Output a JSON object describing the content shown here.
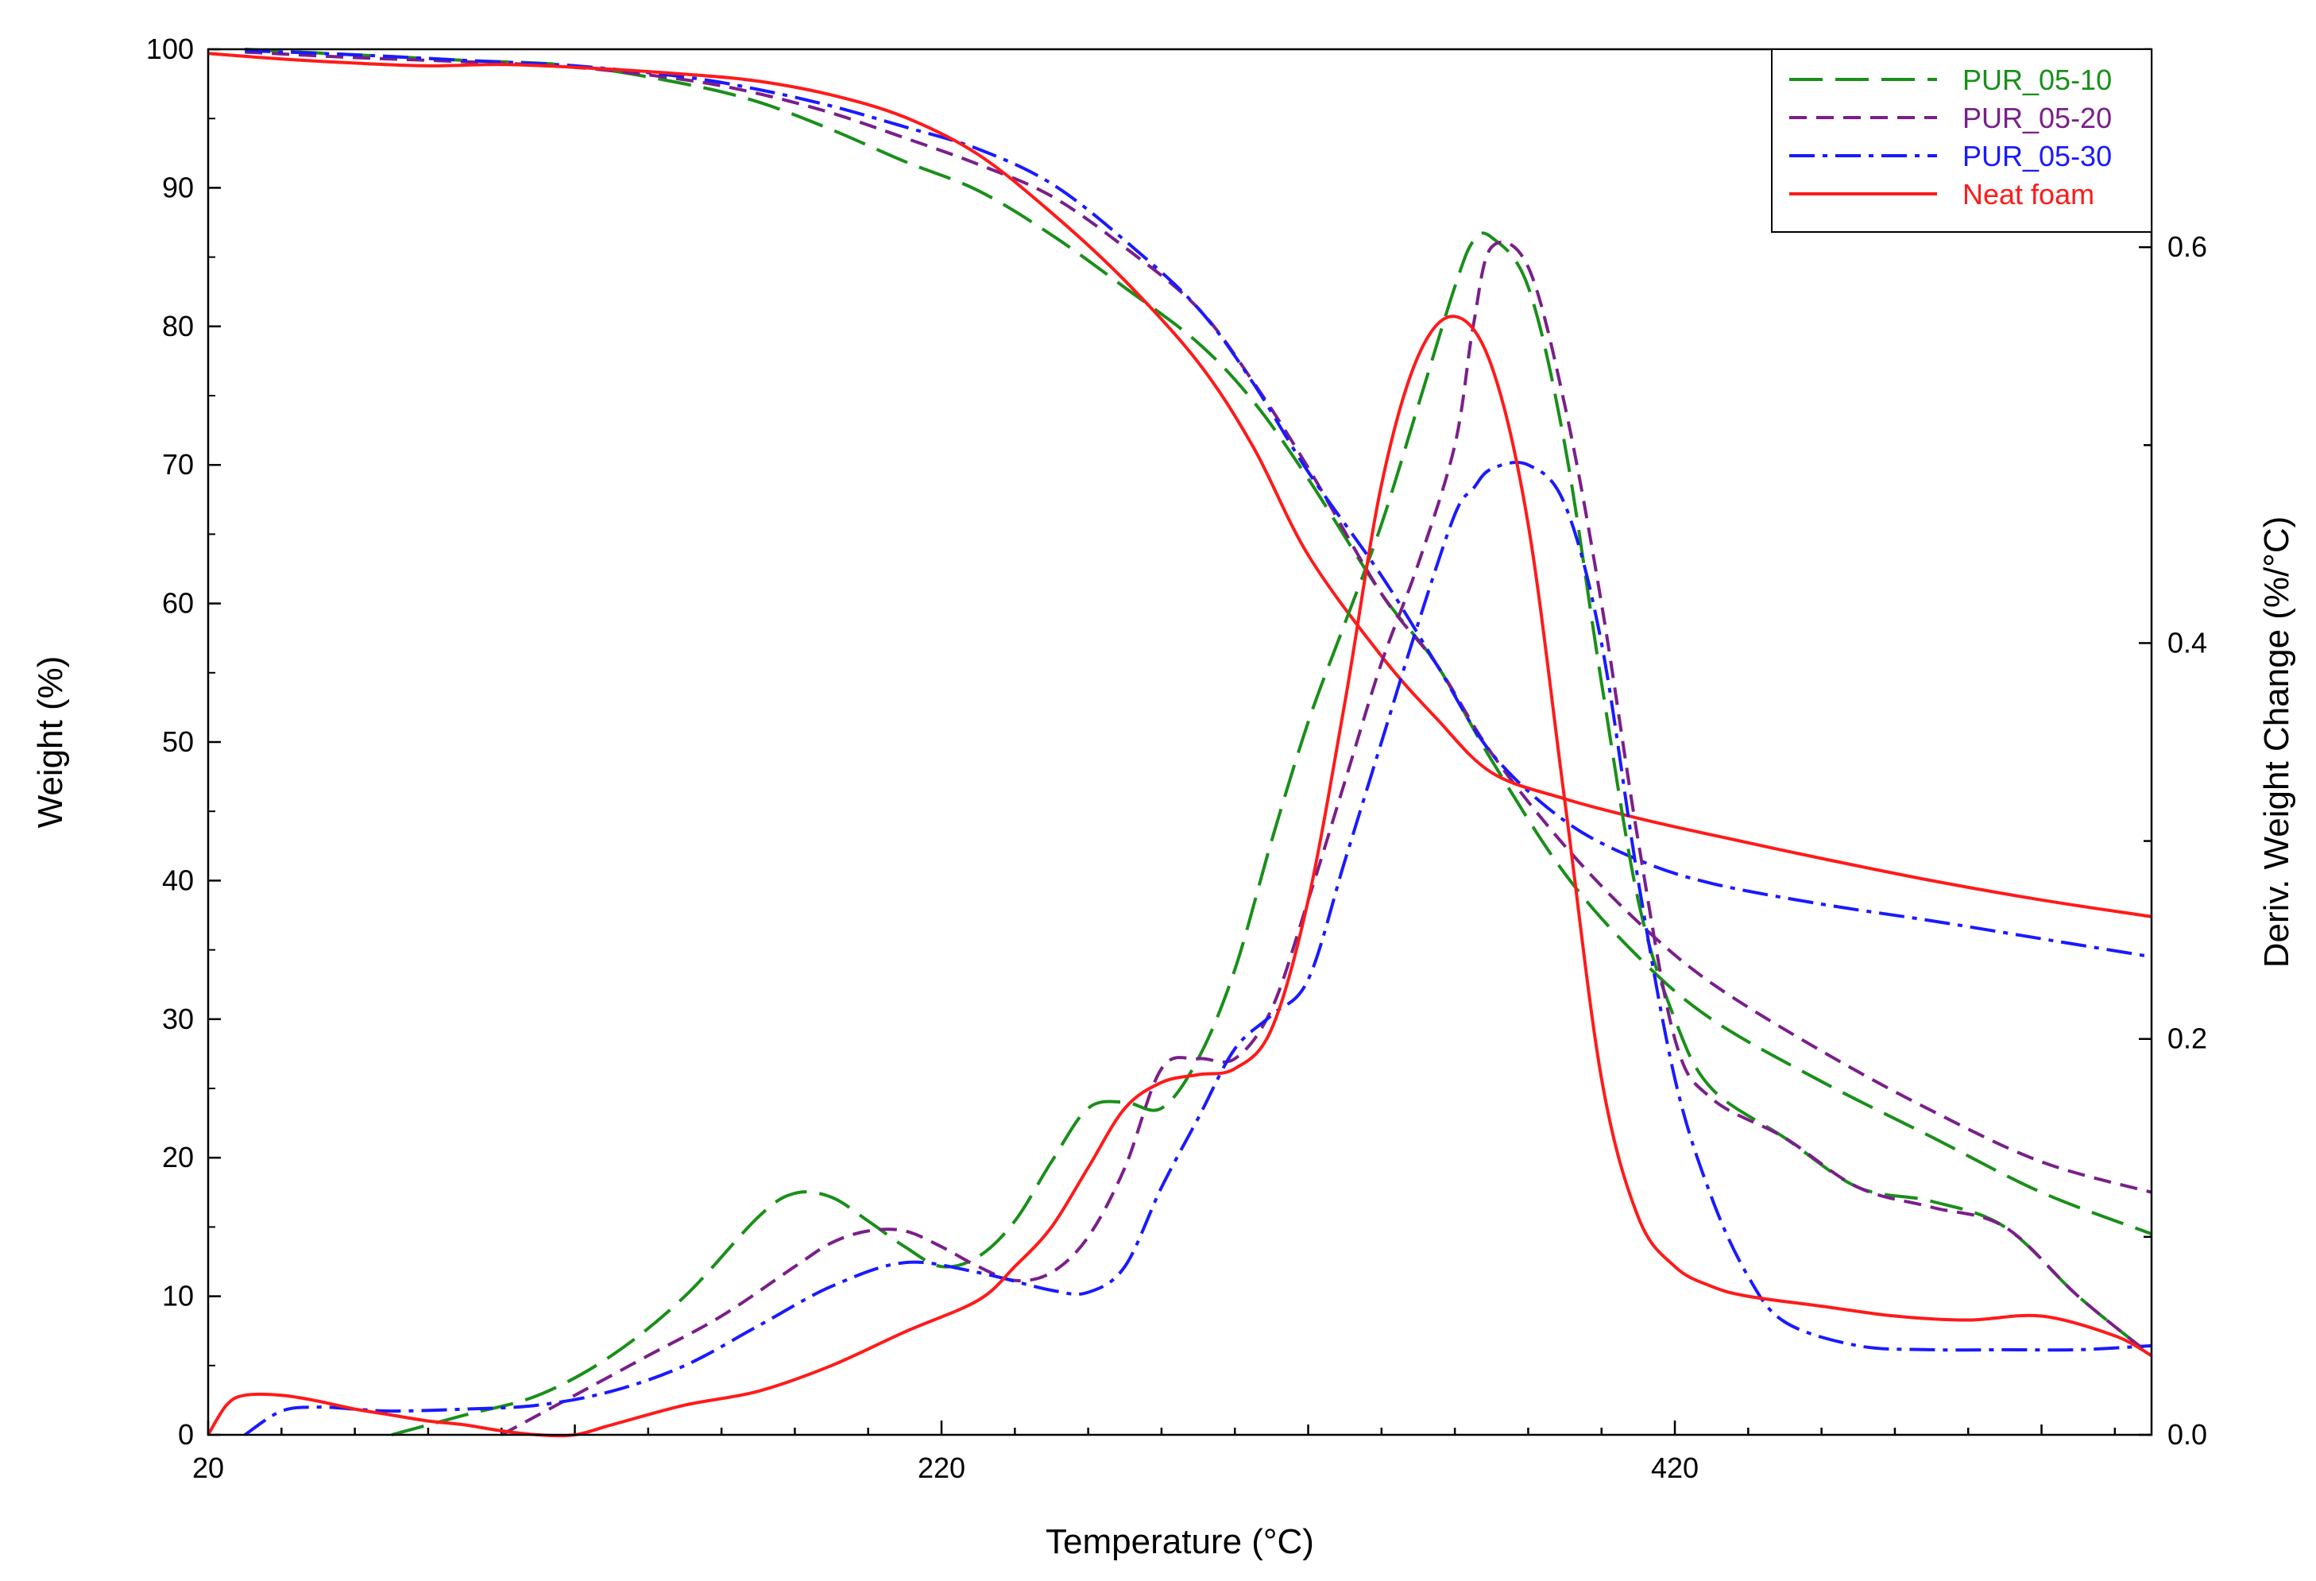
{
  "chart_data": {
    "type": "line",
    "xlabel": "Temperature (°C)",
    "ylabel": "Weight (%)",
    "y2label": "Deriv. Weight Change (%/°C)",
    "xlim": [
      20,
      550
    ],
    "ylim": [
      0,
      100
    ],
    "y2lim": [
      0,
      0.7
    ],
    "xticks": [
      20,
      220,
      420
    ],
    "yticks": [
      0,
      10,
      20,
      30,
      40,
      50,
      60,
      70,
      80,
      90,
      100
    ],
    "y2ticks": [
      0.0,
      0.2,
      0.4,
      0.6
    ],
    "y2tick_labels": [
      "0.0",
      "0.2",
      "0.4",
      "0.6"
    ],
    "legend_position": "top-right",
    "legend": [
      {
        "name": "PUR_05-10",
        "color": "#1a8f1a",
        "dash": "42 16"
      },
      {
        "name": "PUR_05-20",
        "color": "#7a1f8a",
        "dash": "22 12"
      },
      {
        "name": "PUR_05-30",
        "color": "#1a1aff",
        "dash": "32 10 6 10"
      },
      {
        "name": "Neat foam",
        "color": "#ff1a1a",
        "dash": ""
      }
    ],
    "series": [
      {
        "name": "PUR_05-10",
        "kind": "weight",
        "axis": "left",
        "x": [
          30,
          60,
          90,
          120,
          150,
          170,
          190,
          210,
          230,
          250,
          270,
          290,
          305,
          320,
          340,
          355,
          370,
          390,
          410,
          430,
          460,
          490,
          520,
          550
        ],
        "y": [
          100,
          99.6,
          99.2,
          98.8,
          97.5,
          96.2,
          94.2,
          91.9,
          89.8,
          86.6,
          82.8,
          78.8,
          74.6,
          69.0,
          60.7,
          55.6,
          48.7,
          40.5,
          34.5,
          30.0,
          25.5,
          21.5,
          17.5,
          14.5
        ]
      },
      {
        "name": "PUR_05-20",
        "kind": "weight",
        "axis": "left",
        "x": [
          30,
          60,
          90,
          120,
          150,
          170,
          190,
          210,
          230,
          250,
          270,
          290,
          305,
          320,
          340,
          355,
          370,
          390,
          410,
          430,
          460,
          490,
          520,
          550
        ],
        "y": [
          99.8,
          99.4,
          99.1,
          98.7,
          97.8,
          96.8,
          95.4,
          93.6,
          91.7,
          89.4,
          85.7,
          81.3,
          76.0,
          69.8,
          60.7,
          55.6,
          49.2,
          42.5,
          37.0,
          32.6,
          27.7,
          23.4,
          19.7,
          17.5
        ]
      },
      {
        "name": "PUR_05-30",
        "kind": "weight",
        "axis": "left",
        "x": [
          30,
          60,
          90,
          120,
          150,
          170,
          190,
          210,
          230,
          250,
          270,
          290,
          305,
          320,
          340,
          355,
          370,
          390,
          410,
          430,
          460,
          490,
          520,
          550
        ],
        "y": [
          99.9,
          99.6,
          99.2,
          98.8,
          98.0,
          97.1,
          95.9,
          94.4,
          92.8,
          90.3,
          86.2,
          81.3,
          75.9,
          69.5,
          62.0,
          55.6,
          49.2,
          44.3,
          41.5,
          39.8,
          38.3,
          37.1,
          35.8,
          34.5
        ]
      },
      {
        "name": "Neat foam",
        "kind": "weight",
        "axis": "left",
        "x": [
          20,
          40,
          60,
          80,
          100,
          120,
          150,
          170,
          190,
          210,
          230,
          250,
          270,
          290,
          305,
          320,
          340,
          355,
          370,
          390,
          410,
          430,
          460,
          490,
          520,
          550
        ],
        "y": [
          99.7,
          99.3,
          99.0,
          98.8,
          98.9,
          98.7,
          98.2,
          97.7,
          96.7,
          95.1,
          92.4,
          88.2,
          83.3,
          77.4,
          71.3,
          63.5,
          56.2,
          51.7,
          47.8,
          45.9,
          44.5,
          43.3,
          41.6,
          40.0,
          38.6,
          37.4
        ]
      },
      {
        "name": "PUR_05-10",
        "kind": "derivative",
        "axis": "right",
        "x": [
          70,
          90,
          110,
          130,
          150,
          170,
          180,
          190,
          200,
          210,
          220,
          230,
          240,
          250,
          260,
          270,
          280,
          290,
          300,
          310,
          320,
          330,
          340,
          350,
          360,
          365,
          370,
          380,
          390,
          400,
          410,
          420,
          430,
          450,
          470,
          490,
          510,
          530,
          550
        ],
        "y": [
          0.0,
          0.01,
          0.02,
          0.04,
          0.07,
          0.11,
          0.122,
          0.12,
          0.108,
          0.095,
          0.085,
          0.09,
          0.108,
          0.138,
          0.165,
          0.168,
          0.165,
          0.19,
          0.235,
          0.3,
          0.36,
          0.41,
          0.46,
          0.52,
          0.58,
          0.603,
          0.605,
          0.58,
          0.5,
          0.38,
          0.27,
          0.21,
          0.175,
          0.15,
          0.125,
          0.118,
          0.105,
          0.07,
          0.04
        ]
      },
      {
        "name": "PUR_05-20",
        "kind": "derivative",
        "axis": "right",
        "x": [
          100,
          120,
          140,
          160,
          180,
          190,
          200,
          210,
          220,
          230,
          240,
          250,
          260,
          270,
          280,
          290,
          300,
          310,
          320,
          330,
          340,
          350,
          360,
          365,
          370,
          380,
          390,
          400,
          410,
          420,
          430,
          450,
          470,
          490,
          510,
          530,
          550
        ],
        "y": [
          0.0,
          0.02,
          0.04,
          0.06,
          0.085,
          0.097,
          0.103,
          0.103,
          0.095,
          0.085,
          0.078,
          0.082,
          0.1,
          0.135,
          0.185,
          0.19,
          0.19,
          0.215,
          0.27,
          0.33,
          0.39,
          0.44,
          0.5,
          0.56,
          0.6,
          0.59,
          0.52,
          0.42,
          0.3,
          0.2,
          0.17,
          0.15,
          0.125,
          0.115,
          0.105,
          0.07,
          0.04
        ]
      },
      {
        "name": "PUR_05-30",
        "kind": "derivative",
        "axis": "right",
        "x": [
          30,
          40,
          50,
          60,
          70,
          90,
          110,
          130,
          150,
          170,
          190,
          210,
          230,
          250,
          260,
          270,
          280,
          290,
          300,
          310,
          320,
          330,
          340,
          350,
          360,
          365,
          370,
          380,
          390,
          400,
          410,
          420,
          430,
          440,
          450,
          470,
          490,
          510,
          530,
          550
        ],
        "y": [
          0.0,
          0.012,
          0.014,
          0.013,
          0.012,
          0.013,
          0.015,
          0.022,
          0.035,
          0.055,
          0.075,
          0.087,
          0.082,
          0.073,
          0.072,
          0.085,
          0.125,
          0.16,
          0.195,
          0.212,
          0.23,
          0.29,
          0.35,
          0.41,
          0.465,
          0.478,
          0.488,
          0.49,
          0.47,
          0.4,
          0.28,
          0.18,
          0.12,
          0.08,
          0.057,
          0.045,
          0.043,
          0.043,
          0.043,
          0.045
        ]
      },
      {
        "name": "Neat foam",
        "kind": "derivative",
        "axis": "right",
        "x": [
          20,
          25,
          30,
          40,
          50,
          60,
          70,
          80,
          90,
          100,
          110,
          120,
          130,
          150,
          170,
          190,
          210,
          230,
          240,
          250,
          260,
          270,
          280,
          290,
          300,
          310,
          320,
          330,
          340,
          350,
          360,
          370,
          380,
          390,
          400,
          410,
          420,
          430,
          440,
          460,
          480,
          500,
          520,
          540,
          550
        ],
        "y": [
          0.0,
          0.015,
          0.02,
          0.02,
          0.017,
          0.013,
          0.01,
          0.007,
          0.005,
          0.002,
          0.0,
          0.0,
          0.005,
          0.015,
          0.022,
          0.035,
          0.052,
          0.068,
          0.085,
          0.105,
          0.135,
          0.165,
          0.178,
          0.182,
          0.185,
          0.205,
          0.27,
          0.37,
          0.48,
          0.545,
          0.565,
          0.54,
          0.46,
          0.32,
          0.18,
          0.11,
          0.085,
          0.075,
          0.07,
          0.065,
          0.06,
          0.058,
          0.06,
          0.05,
          0.04
        ]
      }
    ]
  }
}
